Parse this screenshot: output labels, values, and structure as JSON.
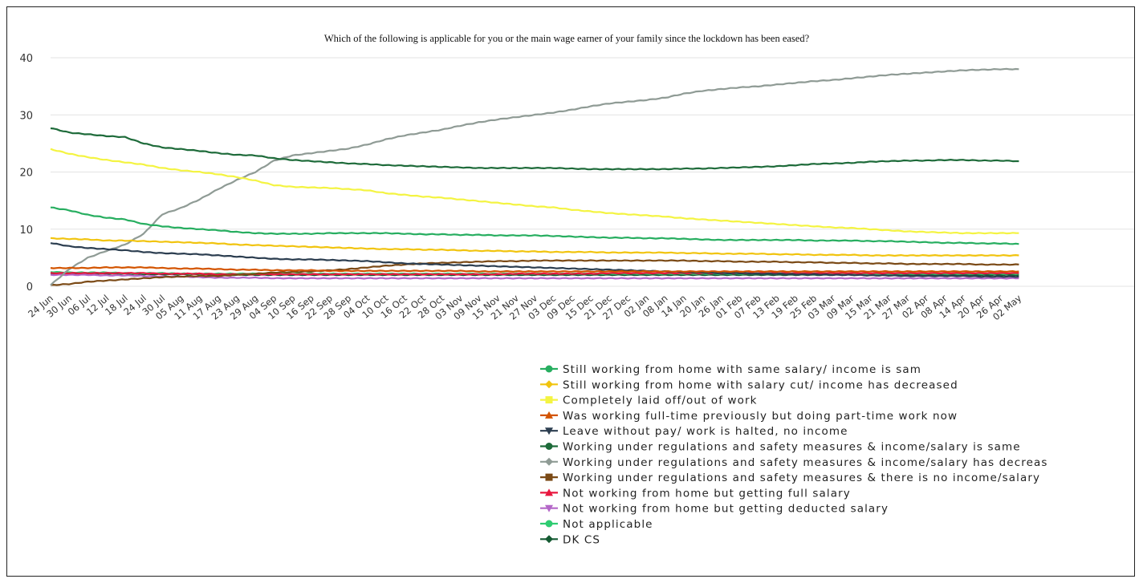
{
  "chart_data": {
    "type": "line",
    "title": "Which of the following is applicable for you or the main wage earner of your family since the lockdown has been eased?",
    "xlabel": "",
    "ylabel": "",
    "ylim": [
      0,
      40
    ],
    "yticks": [
      0,
      10,
      20,
      30,
      40
    ],
    "grid": true,
    "legend_position": "bottom-right",
    "x": [
      "24 Jun",
      "30 Jun",
      "06 Jul",
      "12 Jul",
      "18 Jul",
      "24 Jul",
      "30 Jul",
      "05 Aug",
      "11 Aug",
      "17 Aug",
      "23 Aug",
      "29 Aug",
      "04 Sep",
      "10 Sep",
      "16 Sep",
      "22 Sep",
      "28 Sep",
      "04 Oct",
      "10 Oct",
      "16 Oct",
      "22 Oct",
      "28 Oct",
      "03 Nov",
      "09 Nov",
      "15 Nov",
      "21 Nov",
      "27 Nov",
      "03 Dec",
      "09 Dec",
      "15 Dec",
      "21 Dec",
      "27 Dec",
      "02 Jan",
      "08 Jan",
      "14 Jan",
      "20 Jan",
      "26 Jan",
      "01 Feb",
      "07 Feb",
      "13 Feb",
      "19 Feb",
      "25 Feb",
      "03 Mar",
      "09 Mar",
      "15 Mar",
      "21 Mar",
      "27 Mar",
      "02 Apr",
      "08 Apr",
      "14 Apr",
      "20 Apr",
      "26 Apr",
      "02 May"
    ],
    "series": [
      {
        "name": "Still working from home with same salary/ income is sam",
        "color": "#27ae60",
        "marker": "circle",
        "values": [
          13.8,
          13.3,
          12.5,
          12.0,
          11.7,
          10.9,
          10.5,
          10.2,
          10.0,
          9.8,
          9.5,
          9.3,
          9.2,
          9.2,
          9.2,
          9.3,
          9.3,
          9.3,
          9.3,
          9.2,
          9.1,
          9.1,
          9.0,
          9.0,
          8.9,
          8.9,
          8.9,
          8.8,
          8.7,
          8.6,
          8.5,
          8.5,
          8.4,
          8.4,
          8.3,
          8.2,
          8.1,
          8.1,
          8.1,
          8.1,
          8.1,
          8.0,
          8.0,
          8.0,
          7.9,
          7.9,
          7.8,
          7.7,
          7.6,
          7.6,
          7.5,
          7.5,
          7.4
        ]
      },
      {
        "name": "Still working from home with salary cut/ income has decreased",
        "color": "#f1c40f",
        "marker": "diamond",
        "values": [
          8.4,
          8.3,
          8.2,
          8.0,
          8.0,
          7.9,
          7.8,
          7.7,
          7.6,
          7.5,
          7.3,
          7.2,
          7.1,
          7.0,
          6.9,
          6.8,
          6.7,
          6.6,
          6.5,
          6.5,
          6.4,
          6.4,
          6.3,
          6.2,
          6.2,
          6.1,
          6.1,
          6.0,
          6.0,
          6.0,
          5.9,
          5.9,
          5.9,
          5.9,
          5.8,
          5.8,
          5.7,
          5.7,
          5.7,
          5.6,
          5.6,
          5.5,
          5.5,
          5.5,
          5.4,
          5.4,
          5.4,
          5.4,
          5.4,
          5.4,
          5.4,
          5.4,
          5.4
        ]
      },
      {
        "name": "Completely laid off/out of work",
        "color": "#f4f442",
        "marker": "square",
        "values": [
          24.0,
          23.2,
          22.6,
          22.1,
          21.7,
          21.3,
          20.7,
          20.3,
          20.0,
          19.6,
          19.1,
          18.5,
          17.7,
          17.4,
          17.3,
          17.2,
          17.0,
          16.8,
          16.3,
          16.0,
          15.7,
          15.5,
          15.2,
          14.9,
          14.6,
          14.3,
          14.0,
          13.8,
          13.4,
          13.1,
          12.8,
          12.6,
          12.4,
          12.2,
          11.9,
          11.7,
          11.5,
          11.3,
          11.1,
          10.9,
          10.7,
          10.5,
          10.3,
          10.2,
          10.0,
          9.8,
          9.6,
          9.5,
          9.4,
          9.3,
          9.3,
          9.3,
          9.3
        ]
      },
      {
        "name": "Was working full-time previously but doing part-time work now",
        "color": "#d35400",
        "marker": "triangle",
        "values": [
          3.2,
          3.2,
          3.2,
          3.3,
          3.3,
          3.3,
          3.2,
          3.1,
          3.1,
          3.0,
          2.9,
          2.9,
          2.8,
          2.8,
          2.8,
          2.7,
          2.7,
          2.7,
          2.7,
          2.7,
          2.7,
          2.7,
          2.7,
          2.6,
          2.6,
          2.6,
          2.6,
          2.6,
          2.6,
          2.6,
          2.6,
          2.6,
          2.6,
          2.6,
          2.6,
          2.6,
          2.6,
          2.6,
          2.6,
          2.6,
          2.6,
          2.6,
          2.6,
          2.6,
          2.6,
          2.6,
          2.6,
          2.6,
          2.6,
          2.6,
          2.6,
          2.6,
          2.6
        ]
      },
      {
        "name": "Leave without pay/ work is halted, no income",
        "color": "#2c3e50",
        "marker": "triangle-down",
        "values": [
          7.6,
          7.0,
          6.7,
          6.5,
          6.3,
          6.0,
          5.8,
          5.7,
          5.6,
          5.4,
          5.2,
          5.0,
          4.8,
          4.7,
          4.7,
          4.6,
          4.5,
          4.4,
          4.2,
          4.0,
          3.9,
          3.8,
          3.7,
          3.6,
          3.5,
          3.4,
          3.3,
          3.2,
          3.1,
          3.0,
          2.9,
          2.8,
          2.7,
          2.6,
          2.5,
          2.4,
          2.3,
          2.3,
          2.2,
          2.2,
          2.1,
          2.1,
          2.0,
          2.0,
          1.9,
          1.9,
          1.8,
          1.8,
          1.8,
          1.8,
          1.7,
          1.7,
          1.7
        ]
      },
      {
        "name": "Working under regulations and safety measures & income/salary is same",
        "color": "#1e6b3a",
        "marker": "circle",
        "values": [
          27.7,
          26.9,
          26.6,
          26.3,
          26.1,
          25.0,
          24.3,
          24.0,
          23.7,
          23.3,
          23.0,
          22.9,
          22.4,
          22.1,
          21.9,
          21.7,
          21.5,
          21.4,
          21.2,
          21.1,
          21.0,
          20.9,
          20.8,
          20.7,
          20.7,
          20.7,
          20.7,
          20.7,
          20.6,
          20.5,
          20.5,
          20.5,
          20.5,
          20.5,
          20.6,
          20.6,
          20.7,
          20.8,
          20.9,
          21.0,
          21.2,
          21.4,
          21.5,
          21.6,
          21.8,
          21.9,
          22.0,
          22.0,
          22.1,
          22.1,
          22.0,
          22.0,
          21.9
        ]
      },
      {
        "name": "Working under regulations and safety measures & income/salary has decreas",
        "color": "#8f9b95",
        "marker": "diamond",
        "values": [
          0.2,
          3.0,
          5.0,
          6.2,
          7.3,
          9.2,
          12.6,
          13.7,
          15.2,
          17.0,
          18.6,
          20.0,
          22.0,
          22.9,
          23.3,
          23.7,
          24.1,
          24.8,
          25.7,
          26.4,
          26.9,
          27.4,
          28.1,
          28.7,
          29.2,
          29.6,
          30.0,
          30.4,
          30.9,
          31.5,
          32.0,
          32.3,
          32.6,
          33.0,
          33.7,
          34.2,
          34.5,
          34.8,
          35.0,
          35.3,
          35.6,
          35.9,
          36.1,
          36.4,
          36.7,
          37.0,
          37.2,
          37.4,
          37.6,
          37.8,
          37.9,
          38.0,
          38.0
        ]
      },
      {
        "name": "Working under regulations and safety measures & there is no income/salary",
        "color": "#7b4a16",
        "marker": "square",
        "values": [
          0.2,
          0.4,
          0.8,
          1.0,
          1.2,
          1.4,
          1.6,
          1.7,
          1.8,
          1.8,
          2.0,
          2.2,
          2.4,
          2.5,
          2.6,
          2.8,
          3.0,
          3.3,
          3.6,
          3.8,
          4.0,
          4.1,
          4.2,
          4.3,
          4.4,
          4.4,
          4.5,
          4.5,
          4.5,
          4.5,
          4.5,
          4.5,
          4.5,
          4.5,
          4.5,
          4.4,
          4.4,
          4.3,
          4.3,
          4.3,
          4.2,
          4.2,
          4.1,
          4.1,
          4.0,
          4.0,
          3.9,
          3.9,
          3.9,
          3.9,
          3.8,
          3.8,
          3.8
        ]
      },
      {
        "name": "Not working from home but getting full salary",
        "color": "#e8173f",
        "marker": "triangle",
        "values": [
          2.3,
          2.3,
          2.3,
          2.3,
          2.3,
          2.3,
          2.2,
          2.2,
          2.2,
          2.1,
          2.1,
          2.1,
          2.1,
          2.1,
          2.1,
          2.1,
          2.1,
          2.1,
          2.1,
          2.1,
          2.1,
          2.1,
          2.1,
          2.1,
          2.1,
          2.2,
          2.2,
          2.2,
          2.2,
          2.2,
          2.3,
          2.3,
          2.3,
          2.3,
          2.3,
          2.3,
          2.3,
          2.3,
          2.3,
          2.3,
          2.3,
          2.3,
          2.3,
          2.3,
          2.3,
          2.3,
          2.3,
          2.3,
          2.3,
          2.3,
          2.3,
          2.3,
          2.3
        ]
      },
      {
        "name": "Not working from home but getting deducted salary",
        "color": "#b467c8",
        "marker": "triangle-down",
        "values": [
          2.0,
          2.0,
          2.0,
          1.9,
          1.9,
          1.8,
          1.7,
          1.7,
          1.6,
          1.5,
          1.5,
          1.5,
          1.4,
          1.4,
          1.4,
          1.4,
          1.4,
          1.4,
          1.4,
          1.4,
          1.4,
          1.4,
          1.4,
          1.4,
          1.4,
          1.4,
          1.4,
          1.4,
          1.4,
          1.4,
          1.4,
          1.4,
          1.4,
          1.4,
          1.4,
          1.4,
          1.4,
          1.4,
          1.4,
          1.4,
          1.4,
          1.4,
          1.4,
          1.4,
          1.4,
          1.4,
          1.4,
          1.4,
          1.4,
          1.4,
          1.4,
          1.4,
          1.4
        ]
      },
      {
        "name": "Not applicable",
        "color": "#2ecc71",
        "marker": "circle",
        "values": [
          2.5,
          2.4,
          2.4,
          2.4,
          2.3,
          2.3,
          2.3,
          2.2,
          2.2,
          2.2,
          2.2,
          2.2,
          2.2,
          2.2,
          2.2,
          2.2,
          2.2,
          2.2,
          2.2,
          2.2,
          2.2,
          2.2,
          2.2,
          2.2,
          2.2,
          2.2,
          2.2,
          2.2,
          2.2,
          2.2,
          2.2,
          2.2,
          2.2,
          2.2,
          2.2,
          2.2,
          2.2,
          2.2,
          2.2,
          2.2,
          2.2,
          2.2,
          2.2,
          2.2,
          2.2,
          2.2,
          2.2,
          2.2,
          2.2,
          2.2,
          2.2,
          2.2,
          2.2
        ]
      },
      {
        "name": "DK CS",
        "color": "#145a32",
        "marker": "diamond",
        "values": [
          2.2,
          2.2,
          2.2,
          2.2,
          2.2,
          2.1,
          2.1,
          2.1,
          2.1,
          2.0,
          2.0,
          2.0,
          2.0,
          2.0,
          2.0,
          2.0,
          2.0,
          2.0,
          2.0,
          2.0,
          2.0,
          2.0,
          2.0,
          2.0,
          2.0,
          2.0,
          2.0,
          2.0,
          2.0,
          2.0,
          2.0,
          2.0,
          2.0,
          2.0,
          2.0,
          2.0,
          2.0,
          2.0,
          2.0,
          2.0,
          2.0,
          2.0,
          2.0,
          2.0,
          2.0,
          2.0,
          2.0,
          2.0,
          2.0,
          2.0,
          2.0,
          2.0,
          2.0
        ]
      }
    ]
  }
}
